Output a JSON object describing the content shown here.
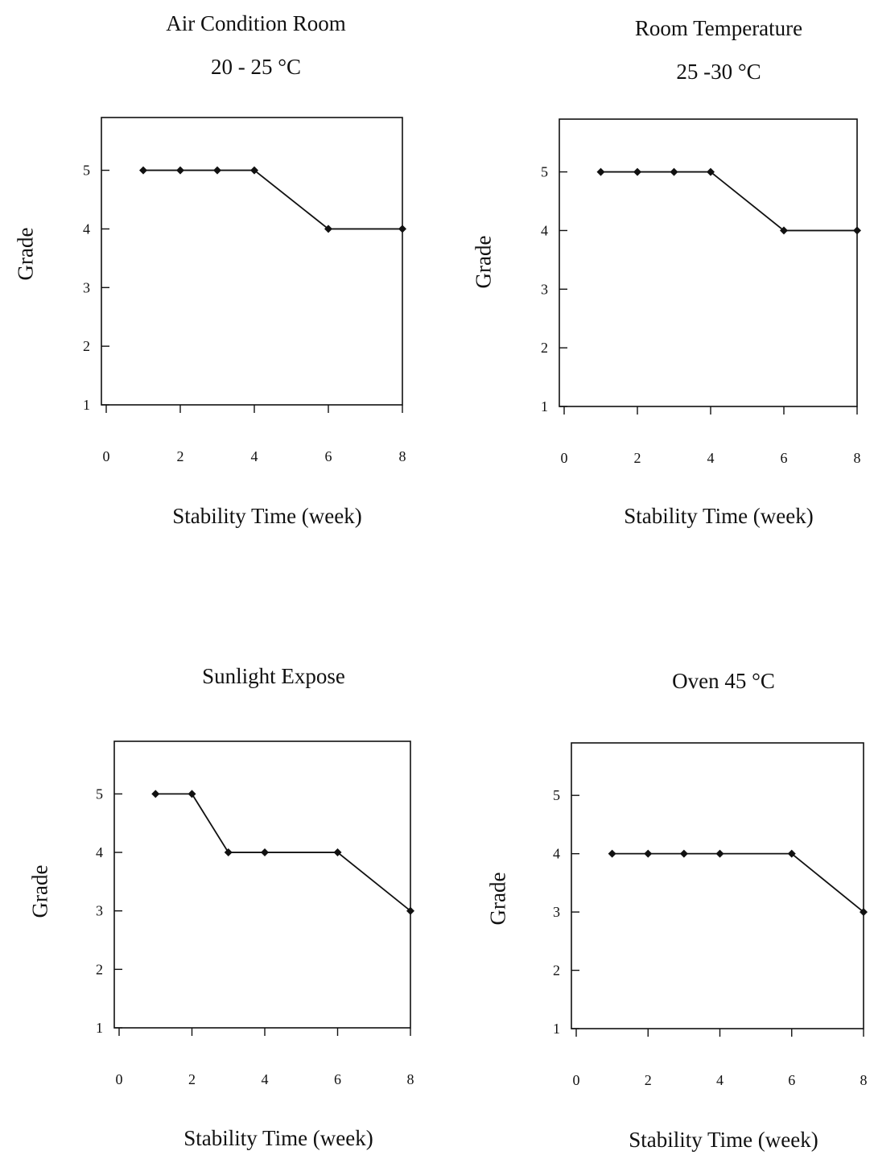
{
  "chart_data": [
    {
      "type": "line",
      "title": "Air Condition Room",
      "subtitle": "20 - 25 °C",
      "xlabel": "Stability Time (week)",
      "ylabel": "Grade",
      "xlim": [
        0,
        8
      ],
      "ylim": [
        1,
        5.9
      ],
      "xticks": [
        0,
        2,
        4,
        6,
        8
      ],
      "yticks": [
        1,
        2,
        3,
        4,
        5
      ],
      "grid": false,
      "x": [
        1,
        2,
        3,
        4,
        6,
        8
      ],
      "series": [
        {
          "values": [
            5,
            5,
            5,
            5,
            4,
            4
          ]
        }
      ]
    },
    {
      "type": "line",
      "title": "Room Temperature",
      "subtitle": "25 -30 °C",
      "xlabel": "Stability Time (week)",
      "ylabel": "Grade",
      "xlim": [
        0,
        8
      ],
      "ylim": [
        1,
        5.9
      ],
      "xticks": [
        0,
        2,
        4,
        6,
        8
      ],
      "yticks": [
        1,
        2,
        3,
        4,
        5
      ],
      "grid": false,
      "x": [
        1,
        2,
        3,
        4,
        6,
        8
      ],
      "series": [
        {
          "values": [
            5,
            5,
            5,
            5,
            4,
            4
          ]
        }
      ]
    },
    {
      "type": "line",
      "title": "Sunlight Expose",
      "subtitle": "",
      "xlabel": "Stability Time (week)",
      "ylabel": "Grade",
      "xlim": [
        0,
        8
      ],
      "ylim": [
        1,
        5.9
      ],
      "xticks": [
        0,
        2,
        4,
        6,
        8
      ],
      "yticks": [
        1,
        2,
        3,
        4,
        5
      ],
      "grid": false,
      "x": [
        1,
        2,
        3,
        4,
        6,
        8
      ],
      "series": [
        {
          "values": [
            5,
            5,
            4,
            4,
            4,
            3
          ]
        }
      ]
    },
    {
      "type": "line",
      "title": "Oven 45 °C",
      "subtitle": "",
      "xlabel": "Stability Time (week)",
      "ylabel": "Grade",
      "xlim": [
        0,
        8
      ],
      "ylim": [
        1,
        5.9
      ],
      "xticks": [
        0,
        2,
        4,
        6,
        8
      ],
      "yticks": [
        1,
        2,
        3,
        4,
        5
      ],
      "grid": false,
      "x": [
        1,
        2,
        3,
        4,
        6,
        8
      ],
      "series": [
        {
          "values": [
            4,
            4,
            4,
            4,
            4,
            3
          ]
        }
      ]
    }
  ]
}
